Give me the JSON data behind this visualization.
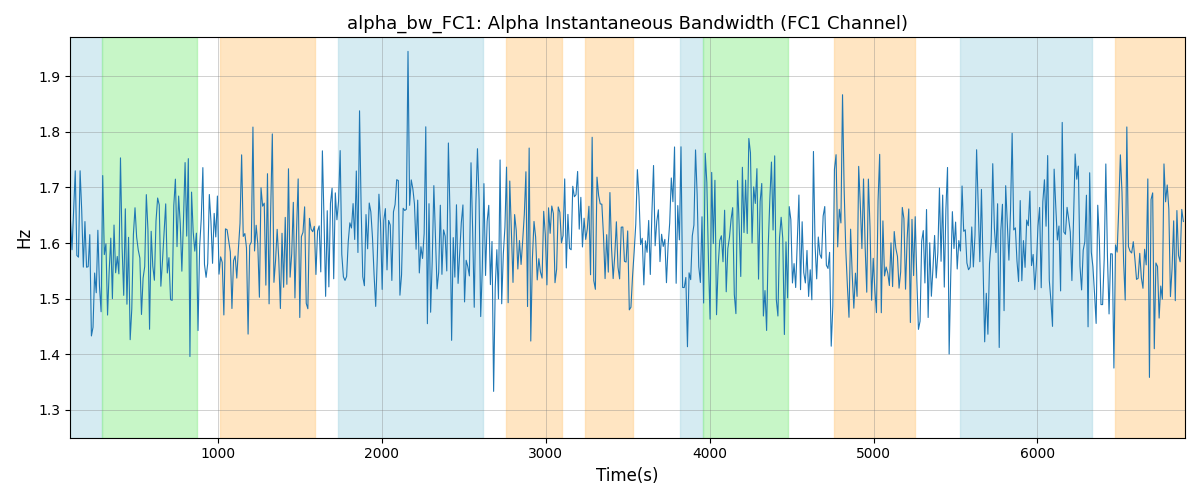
{
  "title": "alpha_bw_FC1: Alpha Instantaneous Bandwidth (FC1 Channel)",
  "xlabel": "Time(s)",
  "ylabel": "Hz",
  "line_color": "#1f77b4",
  "line_width": 0.8,
  "ylim": [
    1.25,
    1.97
  ],
  "xlim": [
    100,
    6900
  ],
  "grid": true,
  "bands": [
    {
      "xmin": 100,
      "xmax": 290,
      "color": "#add8e6",
      "alpha": 0.5
    },
    {
      "xmin": 290,
      "xmax": 870,
      "color": "#90ee90",
      "alpha": 0.5
    },
    {
      "xmin": 1010,
      "xmax": 1590,
      "color": "#ffd59a",
      "alpha": 0.6
    },
    {
      "xmin": 1730,
      "xmax": 2620,
      "color": "#add8e6",
      "alpha": 0.5
    },
    {
      "xmin": 2760,
      "xmax": 3100,
      "color": "#ffd59a",
      "alpha": 0.6
    },
    {
      "xmin": 3240,
      "xmax": 3530,
      "color": "#ffd59a",
      "alpha": 0.6
    },
    {
      "xmin": 3820,
      "xmax": 3960,
      "color": "#add8e6",
      "alpha": 0.5
    },
    {
      "xmin": 3960,
      "xmax": 4480,
      "color": "#90ee90",
      "alpha": 0.5
    },
    {
      "xmin": 4760,
      "xmax": 5250,
      "color": "#ffd59a",
      "alpha": 0.6
    },
    {
      "xmin": 5530,
      "xmax": 6330,
      "color": "#add8e6",
      "alpha": 0.5
    },
    {
      "xmin": 6470,
      "xmax": 6900,
      "color": "#ffd59a",
      "alpha": 0.6
    }
  ],
  "seed": 42,
  "n_points": 690,
  "x_start": 100,
  "x_end": 6890,
  "base_mean": 1.6,
  "base_std": 0.085
}
